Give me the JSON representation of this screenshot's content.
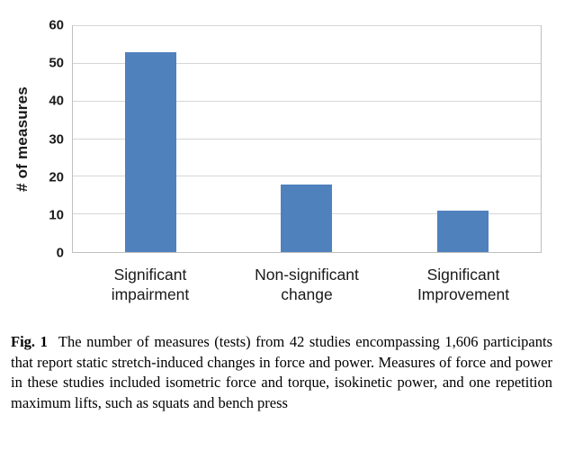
{
  "chart_data": {
    "type": "bar",
    "categories": [
      "Significant\nimpairment",
      "Non-significant\nchange",
      "Significant\nImprovement"
    ],
    "values": [
      53,
      18,
      11
    ],
    "title": "",
    "xlabel": "",
    "ylabel": "# of measures",
    "ylim": [
      0,
      60
    ],
    "yticks": [
      0,
      10,
      20,
      30,
      40,
      50,
      60
    ],
    "bar_color": "#4f81bd",
    "gridlines": true,
    "legend": "none"
  },
  "caption": {
    "label": "Fig. 1",
    "text": "The number of measures (tests) from 42 studies encompassing 1,606 participants that report static stretch-induced changes in force and power. Measures of force and power in these studies included isometric force and torque, isokinetic power, and one repetition maximum lifts, such as squats and bench press"
  }
}
